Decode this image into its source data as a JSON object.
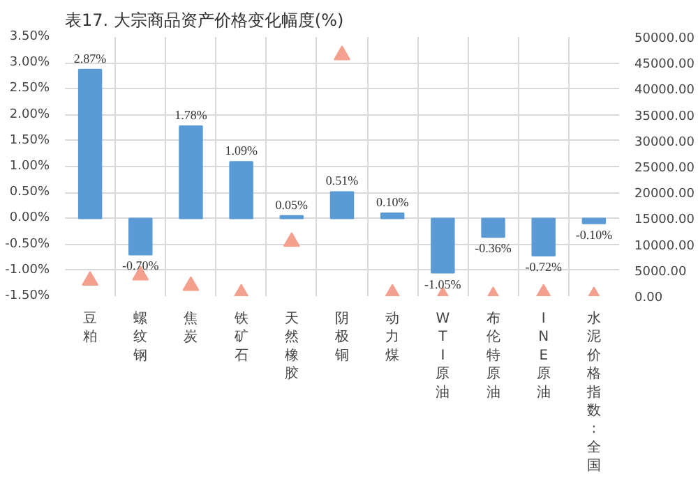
{
  "chart_data": {
    "type": "bar",
    "title": "表17. 大宗商品资产价格变化幅度(%)",
    "categories": [
      "豆粕",
      "螺纹钢",
      "焦炭",
      "铁矿石",
      "天然橡胶",
      "阴极铜",
      "动力煤",
      "WTI原油",
      "布伦特原油",
      "INE原油",
      "水泥价格指数:全国"
    ],
    "series": [
      {
        "axis": "y",
        "color": "#5b9bd5",
        "values": [
          2.87,
          -0.7,
          1.78,
          1.09,
          0.05,
          0.51,
          0.1,
          -1.05,
          -0.36,
          -0.72,
          -0.1
        ],
        "value_labels": [
          "2.87%",
          "-0.70%",
          "1.78%",
          "1.09%",
          "0.05%",
          "0.51%",
          "0.10%",
          "-1.05%",
          "-0.36%",
          "-0.72%",
          "-0.10%"
        ]
      },
      {
        "type": "scatter",
        "axis": "y2",
        "color": "#f4a08e",
        "marker": "triangle",
        "values": [
          3000,
          4000,
          2000,
          500,
          10500,
          46500,
          500,
          0,
          0,
          500,
          0
        ]
      }
    ],
    "ylim": [
      -1.5,
      3.5
    ],
    "yticks": [
      {
        "value": -1.5,
        "label": "-1.50%"
      },
      {
        "value": -1.0,
        "label": "-1.00%"
      },
      {
        "value": -0.5,
        "label": "-0.50%"
      },
      {
        "value": 0,
        "label": "0.00%"
      },
      {
        "value": 0.5,
        "label": "0.50%"
      },
      {
        "value": 1.0,
        "label": "1.00%"
      },
      {
        "value": 1.5,
        "label": "1.50%"
      },
      {
        "value": 2.0,
        "label": "2.00%"
      },
      {
        "value": 2.5,
        "label": "2.50%"
      },
      {
        "value": 3.0,
        "label": "3.00%"
      },
      {
        "value": 3.5,
        "label": "3.50%"
      }
    ],
    "y2lim": [
      0,
      50000
    ],
    "y2ticks": [
      {
        "value": 0,
        "label": "0.00"
      },
      {
        "value": 5000,
        "label": "5000.00"
      },
      {
        "value": 10000,
        "label": "10000.00"
      },
      {
        "value": 15000,
        "label": "15000.00"
      },
      {
        "value": 20000,
        "label": "20000.00"
      },
      {
        "value": 25000,
        "label": "25000.00"
      },
      {
        "value": 30000,
        "label": "30000.00"
      },
      {
        "value": 35000,
        "label": "35000.00"
      },
      {
        "value": 40000,
        "label": "40000.00"
      },
      {
        "value": 45000,
        "label": "45000.00"
      },
      {
        "value": 50000,
        "label": "50000.00"
      }
    ],
    "grid": true
  }
}
